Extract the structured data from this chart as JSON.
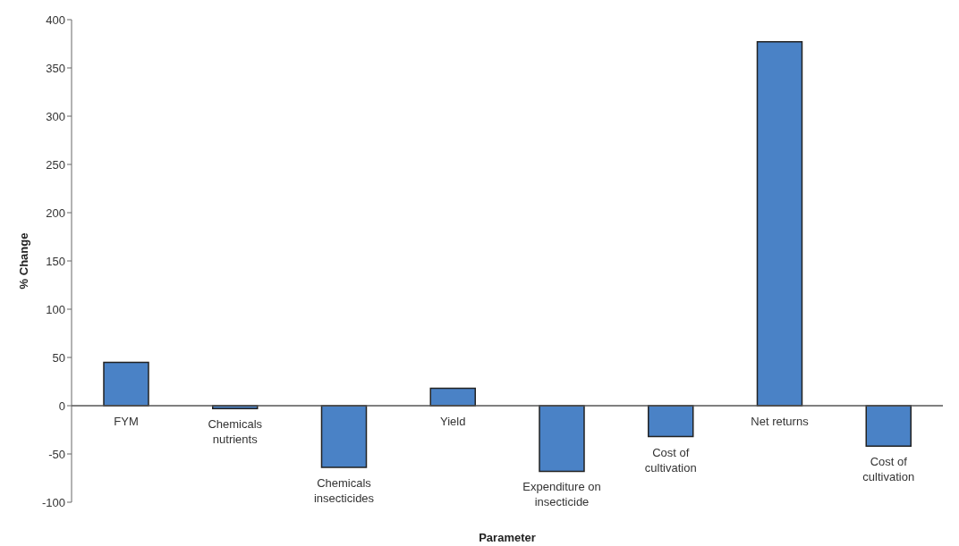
{
  "chart_data": {
    "type": "bar",
    "xlabel": "Parameter",
    "ylabel": "% Change",
    "categories": [
      "FYM",
      "Chemicals nutrients",
      "Chemicals insecticides",
      "Yield",
      "Expenditure on insecticide",
      "Cost of cultivation",
      "Net returns",
      "Cost of cultivation"
    ],
    "values": [
      45,
      -3,
      -64,
      18,
      -68,
      -32,
      377,
      -42
    ],
    "color": "#4a82c6",
    "ylim": [
      -100,
      400
    ],
    "yticks": [
      -100,
      -50,
      0,
      50,
      100,
      150,
      200,
      250,
      300,
      350,
      400
    ],
    "grid": false,
    "legend": false
  }
}
